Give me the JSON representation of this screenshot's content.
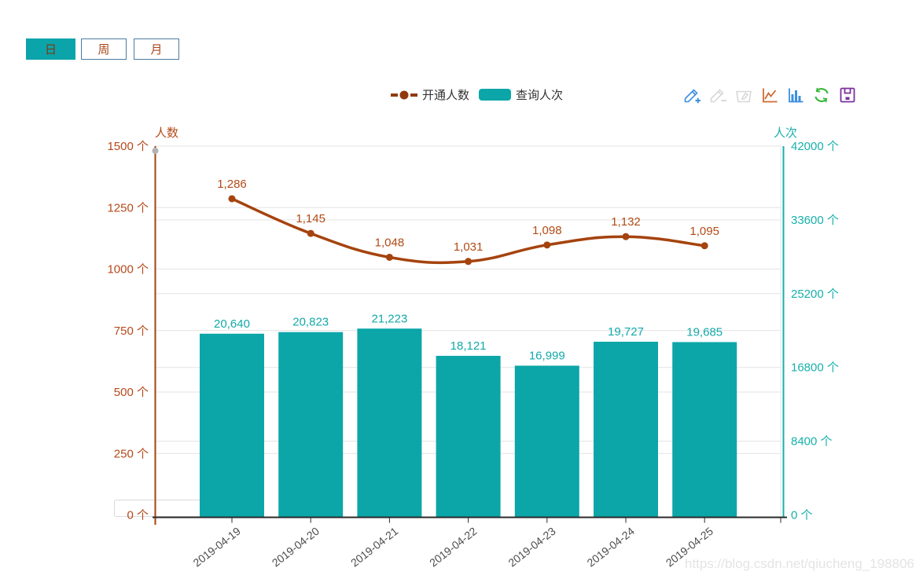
{
  "tabs": {
    "items": [
      {
        "label": "日",
        "active": true
      },
      {
        "label": "周",
        "active": false
      },
      {
        "label": "月",
        "active": false
      }
    ],
    "active_bg": "#0ba4ab",
    "border_color": "#4c7ba1",
    "text_color": "#a8491c"
  },
  "legend": {
    "items": [
      {
        "type": "line",
        "color": "#8f3a0d"
      },
      {
        "type": "bar",
        "color": "#0ca6a8"
      }
    ]
  },
  "toolbox": {
    "icons": [
      {
        "name": "edit-add-icon",
        "color": "#3d8fde"
      },
      {
        "name": "edit-remove-icon",
        "color": "#d8d8d8"
      },
      {
        "name": "clear-icon",
        "color": "#d8d8d8"
      },
      {
        "name": "line-chart-icon",
        "color": "#cf6a31"
      },
      {
        "name": "bar-chart-icon",
        "color": "#3d8fde"
      },
      {
        "name": "refresh-icon",
        "color": "#39b93a"
      },
      {
        "name": "save-icon",
        "color": "#7b2f9e"
      }
    ]
  },
  "chart_data": {
    "type": "combo",
    "categories": [
      "2019-04-19",
      "2019-04-20",
      "2019-04-21",
      "2019-04-22",
      "2019-04-23",
      "2019-04-24",
      "2019-04-25"
    ],
    "series": [
      {
        "name": "开通人数",
        "type": "line",
        "axis": "left",
        "color": "#a5430e",
        "label_color": "#b14a15",
        "values": [
          1286,
          1145,
          1048,
          1031,
          1098,
          1132,
          1095
        ],
        "labels": [
          "1,286",
          "1,145",
          "1,048",
          "1,031",
          "1,098",
          "1,132",
          "1,095"
        ]
      },
      {
        "name": "查询人次",
        "type": "bar",
        "axis": "right",
        "color": "#0ca6a8",
        "label_color": "#14a9a9",
        "values": [
          20640,
          20823,
          21223,
          18121,
          16999,
          19727,
          19685
        ],
        "labels": [
          "20,640",
          "20,823",
          "21,223",
          "18,121",
          "16,999",
          "19,727",
          "19,685"
        ]
      }
    ],
    "left_axis": {
      "name": "人数",
      "min": 0,
      "max": 1500,
      "interval": 250,
      "color": "#b5491a",
      "tick_labels": [
        "0 个",
        "250 个",
        "500 个",
        "750 个",
        "1000 个",
        "1250 个",
        "1500 个"
      ]
    },
    "right_axis": {
      "name": "人次",
      "min": 0,
      "max": 42000,
      "interval": 8400,
      "color": "#17b0ab",
      "tick_labels": [
        "0 个",
        "8400 个",
        "16800 个",
        "25200 个",
        "33600 个",
        "42000 个"
      ]
    },
    "x_axis": {
      "line_color": "#2b2b2b",
      "label_color": "#4d4d4d",
      "label_rotate": -38
    },
    "grid": true,
    "grid_color": "#e3e3e3",
    "legend_position": "top-center"
  },
  "zero_input": {
    "value": "0 个",
    "border_color": "#d9d9d9"
  },
  "watermark": {
    "text": "https://blog.csdn.net/qiucheng_198806",
    "color": "#e4e4e4"
  }
}
